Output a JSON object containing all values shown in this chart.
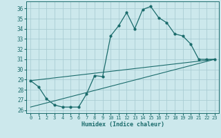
{
  "xlabel": "Humidex (Indice chaleur)",
  "bg_color": "#cce8ec",
  "grid_color": "#aacdd4",
  "line_color": "#1a6b6b",
  "xlim": [
    -0.5,
    23.5
  ],
  "ylim": [
    25.7,
    36.7
  ],
  "xticks": [
    0,
    1,
    2,
    3,
    4,
    5,
    6,
    7,
    8,
    9,
    10,
    11,
    12,
    13,
    14,
    15,
    16,
    17,
    18,
    19,
    20,
    21,
    22,
    23
  ],
  "yticks": [
    26,
    27,
    28,
    29,
    30,
    31,
    32,
    33,
    34,
    35,
    36
  ],
  "series1_x": [
    0,
    1,
    2,
    3,
    4,
    5,
    6,
    7,
    8,
    9,
    10,
    11,
    12,
    13,
    14,
    15,
    16,
    17,
    18,
    19,
    20,
    21,
    22,
    23
  ],
  "series1_y": [
    28.9,
    28.3,
    27.1,
    26.5,
    26.3,
    26.3,
    26.3,
    27.6,
    29.4,
    29.3,
    33.3,
    34.3,
    35.6,
    34.0,
    35.9,
    36.2,
    35.1,
    34.6,
    33.5,
    33.3,
    32.5,
    31.0,
    31.0,
    31.0
  ],
  "series2_x": [
    0,
    23
  ],
  "series2_y": [
    28.9,
    31.0
  ],
  "series3_x": [
    0,
    23
  ],
  "series3_y": [
    26.3,
    31.0
  ]
}
